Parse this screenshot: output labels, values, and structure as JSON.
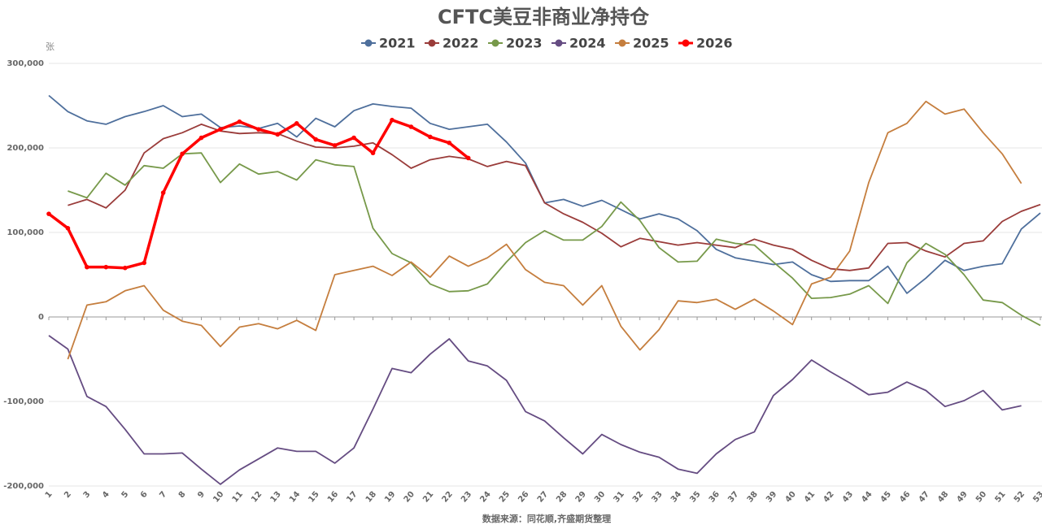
{
  "chart_data": {
    "type": "line",
    "title": "CFTC美豆非商业净持仓",
    "y_label": "张",
    "source": "数据来源：同花顺,齐盛期货整理",
    "x": [
      1,
      2,
      3,
      4,
      5,
      6,
      7,
      8,
      9,
      10,
      11,
      12,
      13,
      14,
      15,
      16,
      17,
      18,
      19,
      20,
      21,
      22,
      23,
      24,
      25,
      26,
      27,
      28,
      29,
      30,
      31,
      32,
      33,
      34,
      35,
      36,
      37,
      38,
      39,
      40,
      41,
      42,
      43,
      44,
      45,
      46,
      47,
      48,
      49,
      50,
      51,
      52,
      53
    ],
    "xlim": [
      1,
      53
    ],
    "ylim": [
      -200000,
      300000
    ],
    "yticks": [
      {
        "value": -200000,
        "label": "-200,000"
      },
      {
        "value": -100000,
        "label": "-100,000"
      },
      0,
      {
        "value": 100000,
        "label": "100,000"
      },
      {
        "value": 200000,
        "label": "200,000"
      },
      {
        "value": 300000,
        "label": "300,000"
      }
    ],
    "grid": true,
    "legend": "top",
    "series": [
      {
        "name": "2021",
        "color": "#4e6f9c",
        "values": [
          262000,
          243000,
          232000,
          228000,
          237000,
          243000,
          250000,
          237000,
          240000,
          224000,
          226000,
          223000,
          229000,
          213000,
          235000,
          225000,
          244000,
          252000,
          249000,
          247000,
          229000,
          222000,
          225000,
          228000,
          207000,
          182000,
          135000,
          139000,
          131000,
          138000,
          127000,
          116000,
          122000,
          116000,
          102000,
          80000,
          70000,
          66000,
          62000,
          65000,
          50000,
          42000,
          43000,
          43000,
          60000,
          28000,
          46000,
          67000,
          55000,
          60000,
          63000,
          104000,
          123000
        ]
      },
      {
        "name": "2022",
        "color": "#9a3c3a",
        "values": [
          null,
          132000,
          139000,
          129000,
          150000,
          194000,
          211000,
          218000,
          228000,
          220000,
          217000,
          218000,
          217000,
          208000,
          201000,
          200000,
          202000,
          206000,
          192000,
          176000,
          186000,
          190000,
          187000,
          178000,
          184000,
          179000,
          135000,
          122000,
          112000,
          99000,
          83000,
          93000,
          89000,
          85000,
          88000,
          85000,
          82000,
          92000,
          85000,
          80000,
          67000,
          57000,
          55000,
          58000,
          87000,
          88000,
          78000,
          71000,
          87000,
          90000,
          113000,
          125000,
          133000
        ]
      },
      {
        "name": "2023",
        "color": "#77994a",
        "values": [
          null,
          149000,
          141000,
          170000,
          156000,
          179000,
          176000,
          193000,
          194000,
          159000,
          181000,
          169000,
          172000,
          162000,
          186000,
          180000,
          178000,
          105000,
          75000,
          64000,
          39000,
          30000,
          31000,
          39000,
          65000,
          88000,
          102000,
          91000,
          91000,
          107000,
          136000,
          114000,
          82000,
          65000,
          66000,
          92000,
          87000,
          85000,
          65000,
          46000,
          22000,
          23000,
          27000,
          37000,
          16000,
          64000,
          87000,
          74000,
          50000,
          20000,
          17000,
          2000,
          -10000
        ]
      },
      {
        "name": "2024",
        "color": "#654c82",
        "values": [
          -22000,
          -38000,
          -94000,
          -106000,
          -133000,
          -162000,
          -162000,
          -161000,
          -180000,
          -198000,
          -181000,
          -168000,
          -155000,
          -159000,
          -159000,
          -173000,
          -155000,
          -109000,
          -61000,
          -66000,
          -44000,
          -26000,
          -52000,
          -58000,
          -75000,
          -112000,
          -123000,
          -143000,
          -162000,
          -139000,
          -151000,
          -160000,
          -166000,
          -180000,
          -185000,
          -162000,
          -145000,
          -136000,
          -93000,
          -74000,
          -51000,
          -65000,
          -78000,
          -92000,
          -89000,
          -77000,
          -87000,
          -106000,
          -99000,
          -87000,
          -110000,
          -105000,
          null
        ]
      },
      {
        "name": "2025",
        "color": "#c57e3e",
        "values": [
          null,
          -50000,
          14000,
          18000,
          31000,
          37000,
          8000,
          -5000,
          -10000,
          -35000,
          -12000,
          -8000,
          -14000,
          -4000,
          -16000,
          50000,
          55000,
          60000,
          49000,
          65000,
          47000,
          72000,
          60000,
          70000,
          86000,
          56000,
          41000,
          37000,
          14000,
          37000,
          -11000,
          -39000,
          -15000,
          19000,
          17000,
          21000,
          9000,
          21000,
          7000,
          -9000,
          39000,
          47000,
          78000,
          159000,
          218000,
          229000,
          255000,
          240000,
          246000,
          218000,
          193000,
          158000,
          null
        ]
      },
      {
        "name": "2026",
        "color": "#ff0000",
        "marker": true,
        "values": [
          122000,
          105000,
          59000,
          59000,
          58000,
          64000,
          147000,
          193000,
          212000,
          222000,
          231000,
          222000,
          216000,
          229000,
          210000,
          203000,
          212000,
          194000,
          233000,
          225000,
          213000,
          206000,
          188000,
          null,
          null,
          null,
          null,
          null,
          null,
          null,
          null,
          null,
          null,
          null,
          null,
          null,
          null,
          null,
          null,
          null,
          null,
          null,
          null,
          null,
          null,
          null,
          null,
          null,
          null,
          null,
          null,
          null,
          null
        ]
      }
    ]
  }
}
